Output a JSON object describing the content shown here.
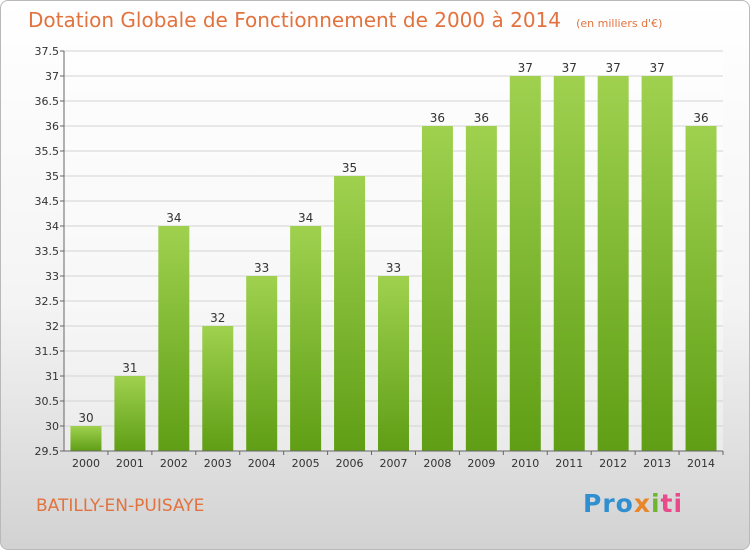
{
  "header": {
    "title": "Dotation Globale de Fonctionnement de 2000 à 2014",
    "unit": "(en milliers d'€)"
  },
  "footer": {
    "commune": "BATILLY-EN-PUISAYE",
    "logo": [
      "Pro",
      "x",
      "i",
      "ti"
    ]
  },
  "colors": {
    "accent": "#e2723e",
    "bar_light": "#9fd14f",
    "bar_dark": "#5f9e15"
  },
  "chart_data": {
    "type": "bar",
    "categories": [
      "2000",
      "2001",
      "2002",
      "2003",
      "2004",
      "2005",
      "2006",
      "2007",
      "2008",
      "2009",
      "2010",
      "2011",
      "2012",
      "2013",
      "2014"
    ],
    "values": [
      30,
      31,
      34,
      32,
      33,
      34,
      35,
      33,
      36,
      36,
      37,
      37,
      37,
      37,
      36
    ],
    "ylim": [
      29.5,
      37.5
    ],
    "yticks": [
      29.5,
      30,
      30.5,
      31,
      31.5,
      32,
      32.5,
      33,
      33.5,
      34,
      34.5,
      35,
      35.5,
      36,
      36.5,
      37,
      37.5
    ],
    "grid": true,
    "legend": "none"
  }
}
